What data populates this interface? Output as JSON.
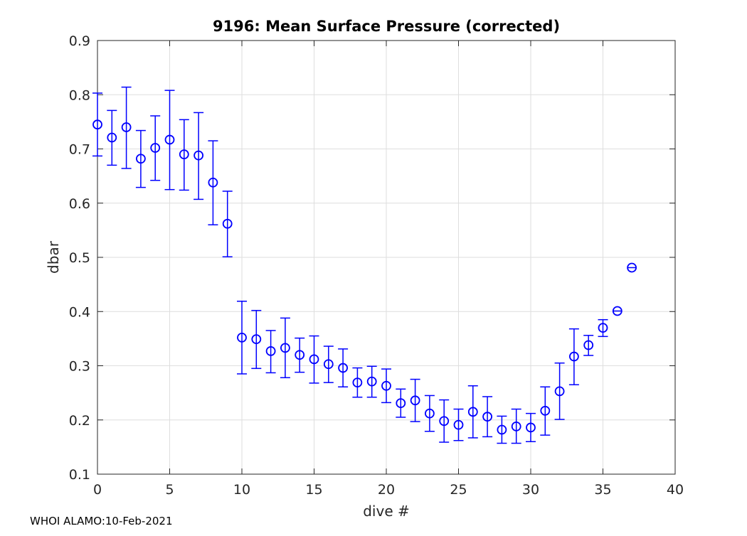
{
  "chart_data": {
    "type": "scatter",
    "title": "9196: Mean Surface Pressure (corrected)",
    "xlabel": "dive #",
    "ylabel": "dbar",
    "xlim": [
      0,
      40
    ],
    "ylim": [
      0.1,
      0.9
    ],
    "xticks": [
      "0",
      "5",
      "10",
      "15",
      "20",
      "25",
      "30",
      "35",
      "40"
    ],
    "yticks": [
      "0.1",
      "0.2",
      "0.3",
      "0.4",
      "0.5",
      "0.6",
      "0.7",
      "0.8",
      "0.9"
    ],
    "grid": true,
    "color": "#0000ff",
    "series": [
      {
        "name": "mean surface pressure",
        "points": [
          {
            "x": 0,
            "y": 0.745,
            "lo": 0.687,
            "hi": 0.803
          },
          {
            "x": 1,
            "y": 0.721,
            "lo": 0.67,
            "hi": 0.771
          },
          {
            "x": 2,
            "y": 0.74,
            "lo": 0.664,
            "hi": 0.814
          },
          {
            "x": 3,
            "y": 0.682,
            "lo": 0.629,
            "hi": 0.734
          },
          {
            "x": 4,
            "y": 0.702,
            "lo": 0.642,
            "hi": 0.761
          },
          {
            "x": 5,
            "y": 0.717,
            "lo": 0.625,
            "hi": 0.808
          },
          {
            "x": 6,
            "y": 0.69,
            "lo": 0.624,
            "hi": 0.754
          },
          {
            "x": 7,
            "y": 0.688,
            "lo": 0.607,
            "hi": 0.767
          },
          {
            "x": 8,
            "y": 0.638,
            "lo": 0.56,
            "hi": 0.715
          },
          {
            "x": 9,
            "y": 0.562,
            "lo": 0.501,
            "hi": 0.622
          },
          {
            "x": 10,
            "y": 0.352,
            "lo": 0.285,
            "hi": 0.419
          },
          {
            "x": 11,
            "y": 0.349,
            "lo": 0.295,
            "hi": 0.402
          },
          {
            "x": 12,
            "y": 0.327,
            "lo": 0.287,
            "hi": 0.365
          },
          {
            "x": 13,
            "y": 0.333,
            "lo": 0.278,
            "hi": 0.388
          },
          {
            "x": 14,
            "y": 0.32,
            "lo": 0.288,
            "hi": 0.351
          },
          {
            "x": 15,
            "y": 0.312,
            "lo": 0.268,
            "hi": 0.355
          },
          {
            "x": 16,
            "y": 0.303,
            "lo": 0.269,
            "hi": 0.336
          },
          {
            "x": 17,
            "y": 0.296,
            "lo": 0.261,
            "hi": 0.331
          },
          {
            "x": 18,
            "y": 0.269,
            "lo": 0.242,
            "hi": 0.296
          },
          {
            "x": 19,
            "y": 0.271,
            "lo": 0.242,
            "hi": 0.299
          },
          {
            "x": 20,
            "y": 0.263,
            "lo": 0.232,
            "hi": 0.294
          },
          {
            "x": 21,
            "y": 0.231,
            "lo": 0.205,
            "hi": 0.257
          },
          {
            "x": 22,
            "y": 0.236,
            "lo": 0.197,
            "hi": 0.275
          },
          {
            "x": 23,
            "y": 0.212,
            "lo": 0.179,
            "hi": 0.245
          },
          {
            "x": 24,
            "y": 0.198,
            "lo": 0.159,
            "hi": 0.237
          },
          {
            "x": 25,
            "y": 0.191,
            "lo": 0.162,
            "hi": 0.22
          },
          {
            "x": 26,
            "y": 0.215,
            "lo": 0.167,
            "hi": 0.263
          },
          {
            "x": 27,
            "y": 0.206,
            "lo": 0.169,
            "hi": 0.243
          },
          {
            "x": 28,
            "y": 0.182,
            "lo": 0.157,
            "hi": 0.207
          },
          {
            "x": 29,
            "y": 0.188,
            "lo": 0.157,
            "hi": 0.22
          },
          {
            "x": 30,
            "y": 0.186,
            "lo": 0.16,
            "hi": 0.212
          },
          {
            "x": 31,
            "y": 0.217,
            "lo": 0.172,
            "hi": 0.261
          },
          {
            "x": 32,
            "y": 0.253,
            "lo": 0.201,
            "hi": 0.305
          },
          {
            "x": 33,
            "y": 0.317,
            "lo": 0.265,
            "hi": 0.368
          },
          {
            "x": 34,
            "y": 0.338,
            "lo": 0.319,
            "hi": 0.356
          },
          {
            "x": 35,
            "y": 0.37,
            "lo": 0.354,
            "hi": 0.385
          },
          {
            "x": 36,
            "y": 0.401,
            "lo": 0.401,
            "hi": 0.401
          },
          {
            "x": 37,
            "y": 0.481,
            "lo": 0.481,
            "hi": 0.481
          }
        ]
      }
    ]
  },
  "footer": {
    "text": "WHOI ALAMO:10-Feb-2021"
  }
}
